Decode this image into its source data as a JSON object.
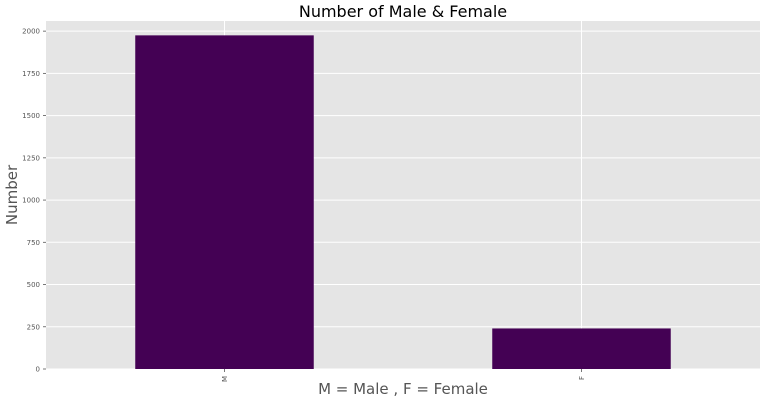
{
  "chart_data": {
    "type": "bar",
    "title": "Number of Male & Female",
    "xlabel": "M = Male , F = Female",
    "ylabel": "Number",
    "categories": [
      "M",
      "F"
    ],
    "values": [
      1975,
      240
    ],
    "ylim": [
      0,
      2060
    ],
    "yticks": [
      0,
      250,
      500,
      750,
      1000,
      1250,
      1500,
      1750,
      2000
    ],
    "ytick_labels": [
      "0",
      "250",
      "500",
      "750",
      "1000",
      "1250",
      "1500",
      "1750",
      "2000"
    ],
    "grid": true,
    "legend": "none",
    "bar_color": "#440154",
    "plot_background": "#e5e5e5",
    "grid_color": "#ffffff"
  }
}
